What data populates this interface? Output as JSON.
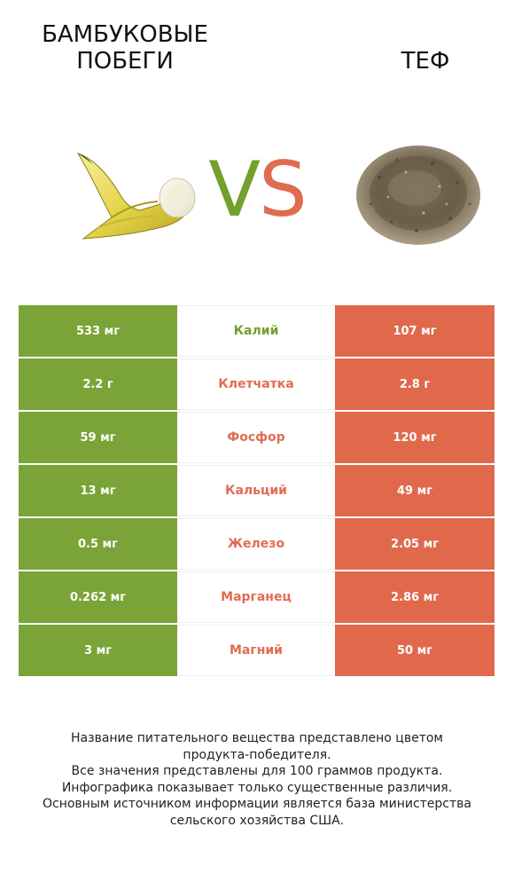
{
  "header": {
    "left_title": "БАМБУКОВЫЕ\nПОБЕГИ",
    "right_title": "ТЕФ",
    "vs_v": "V",
    "vs_s": "S"
  },
  "colors": {
    "left_winner": "#7aa437",
    "right_winner": "#e0694c"
  },
  "table": {
    "rows": [
      {
        "left": "533 мг",
        "nutrient": "Калий",
        "right": "107 мг",
        "winner": "left"
      },
      {
        "left": "2.2 г",
        "nutrient": "Клетчатка",
        "right": "2.8 г",
        "winner": "right"
      },
      {
        "left": "59 мг",
        "nutrient": "Фосфор",
        "right": "120 мг",
        "winner": "right"
      },
      {
        "left": "13 мг",
        "nutrient": "Кальций",
        "right": "49 мг",
        "winner": "right"
      },
      {
        "left": "0.5 мг",
        "nutrient": "Железо",
        "right": "2.05 мг",
        "winner": "right"
      },
      {
        "left": "0.262 мг",
        "nutrient": "Марганец",
        "right": "2.86 мг",
        "winner": "right"
      },
      {
        "left": "3 мг",
        "nutrient": "Магний",
        "right": "50 мг",
        "winner": "right"
      }
    ]
  },
  "footer": {
    "line1": "Название питательного вещества представлено цветом\nпродукта-победителя.",
    "line2": "Все значения представлены для 100 граммов продукта.",
    "line3": "Инфографика показывает только существенные различия.",
    "line4": "Основным источником информации является база министерства\nсельского хозяйства США."
  }
}
